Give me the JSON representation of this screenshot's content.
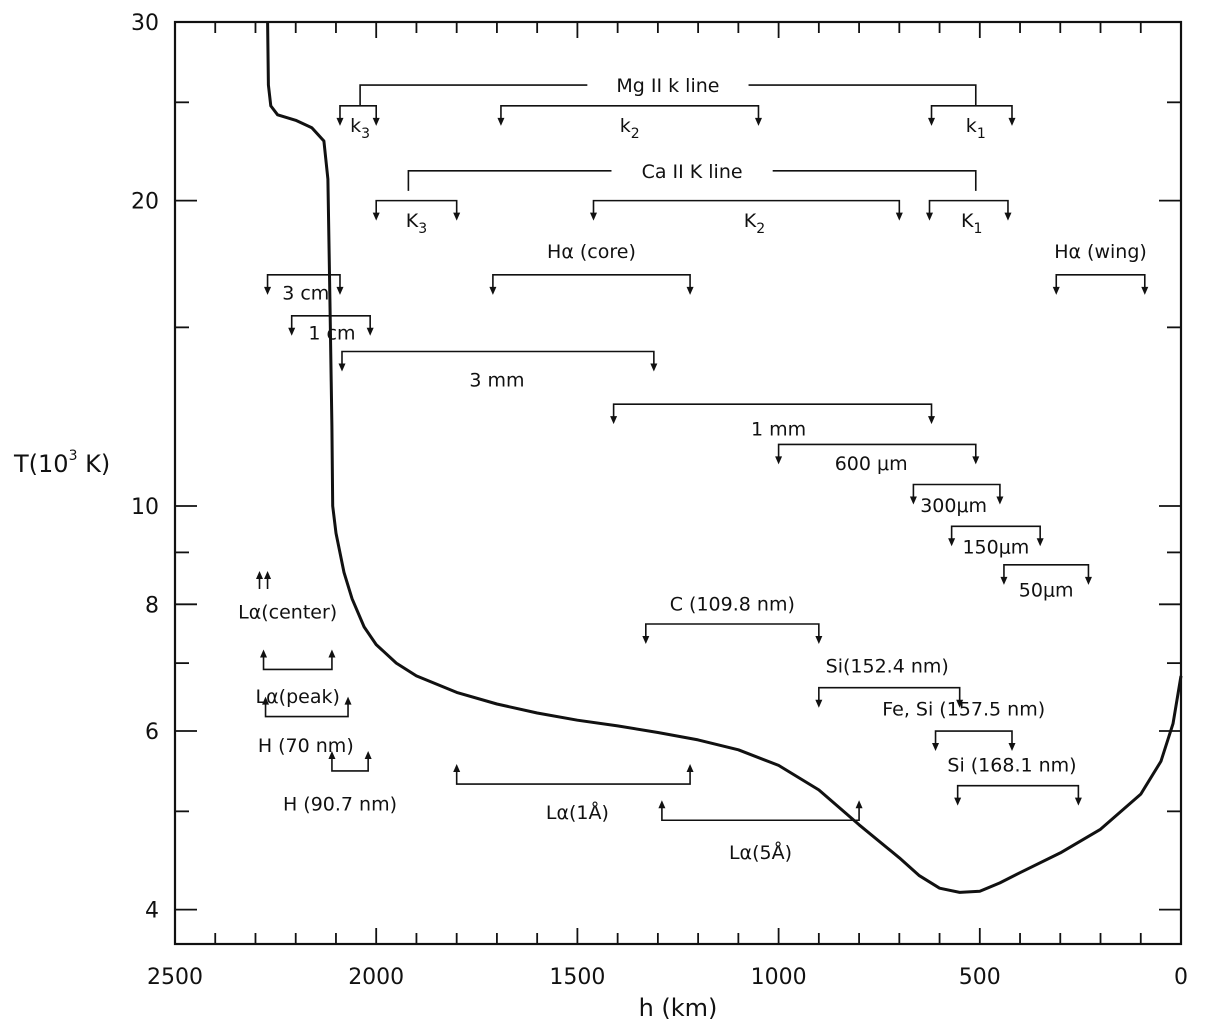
{
  "chart_data": {
    "type": "line",
    "title": "",
    "xlabel": "h  (km)",
    "ylabel_main": "T(10",
    "ylabel_exp": "3",
    "ylabel_end": " K)",
    "xlim": [
      2500,
      0
    ],
    "ylim": [
      3.7,
      30
    ],
    "y_scale": "log",
    "x_ticks": [
      2500,
      2000,
      1500,
      1000,
      500,
      0
    ],
    "x_tick_labels": [
      "2500",
      "2000",
      "1500",
      "1000",
      "500",
      "0"
    ],
    "y_ticks": [
      4,
      6,
      8,
      10,
      20,
      30
    ],
    "y_tick_labels": [
      "4",
      "6",
      "8",
      "10",
      "20",
      "30"
    ],
    "series": [
      {
        "points": [
          [
            2270,
            30
          ],
          [
            2268,
            26
          ],
          [
            2262,
            24.8
          ],
          [
            2245,
            24.3
          ],
          [
            2200,
            24.0
          ],
          [
            2160,
            23.6
          ],
          [
            2130,
            22.9
          ],
          [
            2120,
            21.0
          ],
          [
            2115,
            16
          ],
          [
            2110,
            12
          ],
          [
            2108,
            10
          ],
          [
            2100,
            9.4
          ],
          [
            2080,
            8.6
          ],
          [
            2060,
            8.1
          ],
          [
            2030,
            7.6
          ],
          [
            2000,
            7.3
          ],
          [
            1950,
            7.0
          ],
          [
            1900,
            6.8
          ],
          [
            1800,
            6.55
          ],
          [
            1700,
            6.38
          ],
          [
            1600,
            6.25
          ],
          [
            1500,
            6.15
          ],
          [
            1400,
            6.07
          ],
          [
            1300,
            5.98
          ],
          [
            1200,
            5.88
          ],
          [
            1100,
            5.75
          ],
          [
            1000,
            5.55
          ],
          [
            900,
            5.25
          ],
          [
            800,
            4.85
          ],
          [
            700,
            4.5
          ],
          [
            650,
            4.32
          ],
          [
            600,
            4.2
          ],
          [
            550,
            4.16
          ],
          [
            500,
            4.17
          ],
          [
            450,
            4.25
          ],
          [
            400,
            4.35
          ],
          [
            300,
            4.55
          ],
          [
            200,
            4.8
          ],
          [
            100,
            5.2
          ],
          [
            50,
            5.6
          ],
          [
            20,
            6.1
          ],
          [
            0,
            6.8
          ]
        ]
      }
    ],
    "annotations": [
      {
        "label": "Mg II  k line",
        "type": "group",
        "h1": 2040,
        "h2": 510,
        "t": 26.0
      },
      {
        "label": "k3",
        "type": "down",
        "h1": 2090,
        "h2": 2000,
        "t": 24.8,
        "label_h": 2040,
        "label_t": 23.7
      },
      {
        "label": "k2",
        "type": "down",
        "h1": 1690,
        "h2": 1050,
        "t": 24.8,
        "label_h": 1370,
        "label_t": 23.7
      },
      {
        "label": "k1",
        "type": "down",
        "h1": 620,
        "h2": 420,
        "t": 24.8,
        "label_h": 510,
        "label_t": 23.7
      },
      {
        "label": "Ca II  K line",
        "type": "group",
        "h1": 1920,
        "h2": 510,
        "t": 21.4
      },
      {
        "label": "K3",
        "type": "down",
        "h1": 2000,
        "h2": 1800,
        "t": 20.0,
        "label_h": 1900,
        "label_t": 19.1
      },
      {
        "label": "K2",
        "type": "down",
        "h1": 1460,
        "h2": 700,
        "t": 20.0,
        "label_h": 1060,
        "label_t": 19.1
      },
      {
        "label": "K1",
        "type": "down",
        "h1": 625,
        "h2": 430,
        "t": 20.0,
        "label_h": 520,
        "label_t": 19.1
      },
      {
        "label": "Hα (core)",
        "type": "down",
        "h1": 1710,
        "h2": 1220,
        "t": 16.9,
        "label_h": 1465,
        "label_t": 17.8
      },
      {
        "label": "Hα (wing)",
        "type": "down",
        "h1": 310,
        "h2": 90,
        "t": 16.9,
        "label_h": 200,
        "label_t": 17.8
      },
      {
        "label": "3 cm",
        "type": "down",
        "h1": 2270,
        "h2": 2090,
        "t": 16.9,
        "label_h": 2175,
        "label_t": 16.2
      },
      {
        "label": "1 cm",
        "type": "down",
        "h1": 2210,
        "h2": 2015,
        "t": 15.4,
        "label_h": 2110,
        "label_t": 14.8
      },
      {
        "label": "3 mm",
        "type": "down",
        "h1": 2085,
        "h2": 1310,
        "t": 14.2,
        "label_h": 1700,
        "label_t": 13.3
      },
      {
        "label": "1 mm",
        "type": "down",
        "h1": 1410,
        "h2": 620,
        "t": 12.6,
        "label_h": 1000,
        "label_t": 11.9
      },
      {
        "label": "600 μm",
        "type": "down",
        "h1": 1000,
        "h2": 510,
        "t": 11.5,
        "label_h": 770,
        "label_t": 11.0
      },
      {
        "label": "300μm",
        "type": "down",
        "h1": 665,
        "h2": 450,
        "t": 10.5,
        "label_h": 565,
        "label_t": 10.0
      },
      {
        "label": "150μm",
        "type": "down",
        "h1": 570,
        "h2": 350,
        "t": 9.55,
        "label_h": 460,
        "label_t": 9.1
      },
      {
        "label": "50μm",
        "type": "down",
        "h1": 440,
        "h2": 230,
        "t": 8.75,
        "label_h": 335,
        "label_t": 8.25
      },
      {
        "label": "Lα(center)",
        "type": "up_marker",
        "h1": 2290,
        "h2": 2270,
        "t": 8.55,
        "label_h": 2220,
        "label_t": 7.85
      },
      {
        "label": "C (109.8 nm)",
        "type": "down",
        "h1": 1330,
        "h2": 900,
        "t": 7.65,
        "label_h": 1115,
        "label_t": 8.0
      },
      {
        "label": "Si(152.4 nm)",
        "type": "down",
        "h1": 900,
        "h2": 550,
        "t": 6.62,
        "label_h": 730,
        "label_t": 6.95
      },
      {
        "label": "Fe, Si (157.5 nm)",
        "type": "down",
        "h1": 610,
        "h2": 420,
        "t": 6.0,
        "label_h": 540,
        "label_t": 6.3
      },
      {
        "label": "Si (168.1 nm)",
        "type": "down",
        "h1": 555,
        "h2": 255,
        "t": 5.3,
        "label_h": 420,
        "label_t": 5.55
      },
      {
        "label": "Lα(peak)",
        "type": "up",
        "h1": 2280,
        "h2": 2110,
        "t": 6.9,
        "label_h": 2195,
        "label_t": 6.48
      },
      {
        "label": "H (70 nm)",
        "type": "up",
        "h1": 2275,
        "h2": 2070,
        "t": 6.2,
        "label_h": 2175,
        "label_t": 5.8
      },
      {
        "label": "H (90.7 nm)",
        "type": "up",
        "h1": 2110,
        "h2": 2020,
        "t": 5.48,
        "label_h": 2090,
        "label_t": 5.08
      },
      {
        "label": "Lα(1Å)",
        "type": "up",
        "h1": 1800,
        "h2": 1220,
        "t": 5.32,
        "label_h": 1500,
        "label_t": 4.98
      },
      {
        "label": "Lα(5Å)",
        "type": "up",
        "h1": 1290,
        "h2": 800,
        "t": 4.9,
        "label_h": 1045,
        "label_t": 4.55
      }
    ]
  }
}
